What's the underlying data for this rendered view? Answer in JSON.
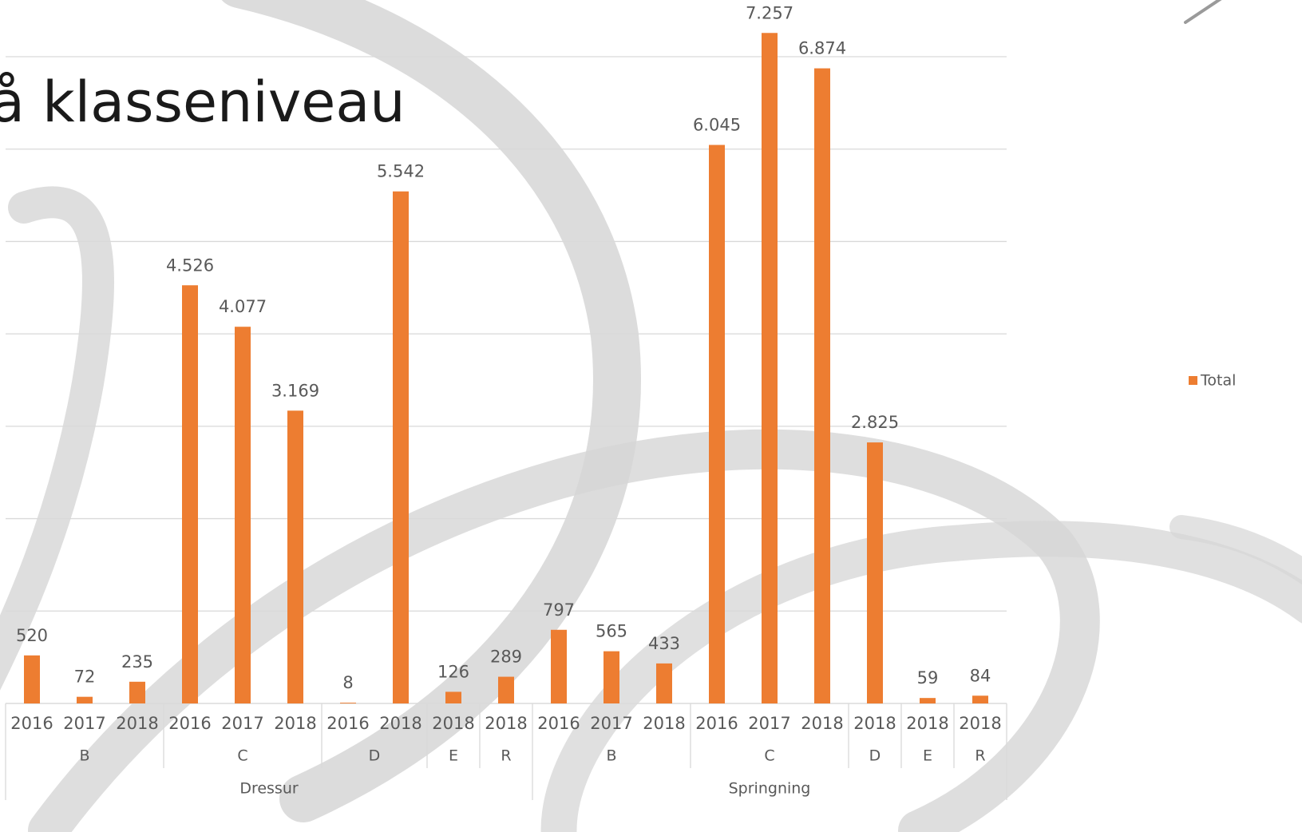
{
  "chart_data": {
    "type": "bar",
    "title": "å klasseniveau",
    "category_groups": [
      {
        "name": "Dressur",
        "groups": [
          {
            "name": "B",
            "categories": [
              "2016",
              "2017",
              "2018"
            ]
          },
          {
            "name": "C",
            "categories": [
              "2016",
              "2017",
              "2018"
            ]
          },
          {
            "name": "D",
            "categories": [
              "2016",
              "2018"
            ]
          },
          {
            "name": "E",
            "categories": [
              "2018"
            ]
          },
          {
            "name": "R",
            "categories": [
              "2018"
            ]
          }
        ]
      },
      {
        "name": "Springning",
        "groups": [
          {
            "name": "B",
            "categories": [
              "2016",
              "2017",
              "2018"
            ]
          },
          {
            "name": "C",
            "categories": [
              "2016",
              "2017",
              "2018"
            ]
          },
          {
            "name": "D",
            "categories": [
              "2018"
            ]
          },
          {
            "name": "E",
            "categories": [
              "2018"
            ]
          },
          {
            "name": "R",
            "categories": [
              "2018"
            ]
          }
        ]
      }
    ],
    "series": [
      {
        "name": "Total",
        "color": "#ed7d31",
        "values": [
          520,
          72,
          235,
          4526,
          4077,
          3169,
          8,
          5542,
          126,
          289,
          797,
          565,
          433,
          6045,
          7257,
          6874,
          2825,
          59,
          84
        ],
        "value_labels": [
          "520",
          "72",
          "235",
          "4.526",
          "4.077",
          "3.169",
          "8",
          "5.542",
          "126",
          "289",
          "797",
          "565",
          "433",
          "6.045",
          "7.257",
          "6.874",
          "2.825",
          "59",
          "84"
        ]
      }
    ],
    "ylim": [
      0,
      7000
    ],
    "yticks": [
      0,
      1000,
      2000,
      3000,
      4000,
      5000,
      6000,
      7000
    ],
    "grid": true,
    "legend": "right"
  }
}
